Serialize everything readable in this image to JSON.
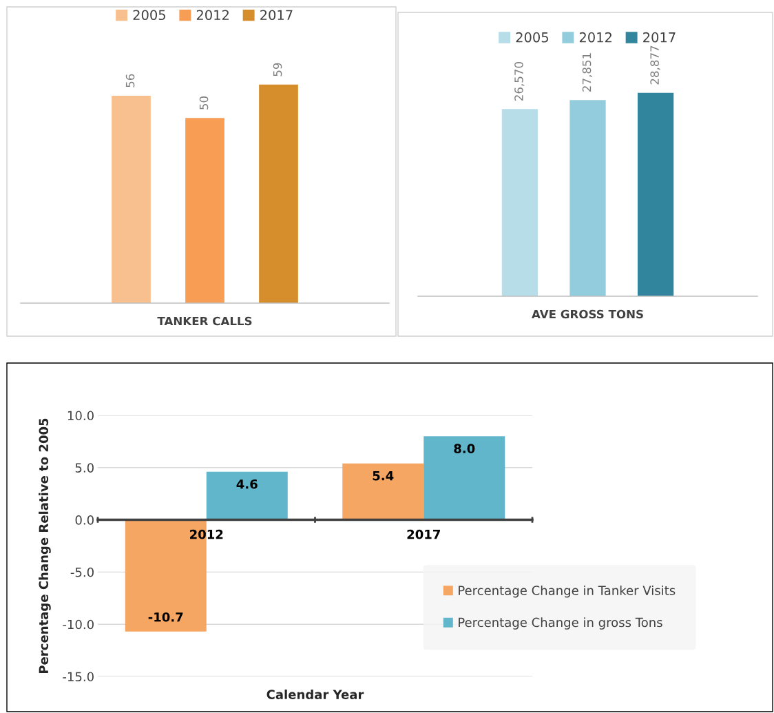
{
  "chart_data": [
    {
      "type": "bar",
      "xlabel": "TANKER CALLS",
      "categories": [
        "2005",
        "2012",
        "2017"
      ],
      "tick_labels": false,
      "data_labels": true,
      "grid": false,
      "series": [
        {
          "colors": [
            "#f9c08f",
            "#f79d54",
            "#d68d2c"
          ],
          "values": [
            56,
            50,
            59
          ]
        }
      ]
    },
    {
      "type": "bar",
      "xlabel": "AVE GROSS TONS",
      "categories": [
        "2005",
        "2012",
        "2017"
      ],
      "tick_labels": false,
      "grid": false,
      "series": [
        {
          "colors": [
            "#b7dde8",
            "#93cddd",
            "#31859c"
          ],
          "values": [
            26570,
            27851,
            28877
          ],
          "value_labels": [
            "26,570",
            "27,851",
            "28,877"
          ]
        }
      ]
    },
    {
      "type": "bar",
      "xlabel": "Calendar Year",
      "ylabel": "Percentage Change Relative to 2005",
      "categories": [
        "2012",
        "2017"
      ],
      "ylim": [
        -15,
        10
      ],
      "yticks": [
        {
          "value": -15,
          "label": "-15.0"
        },
        {
          "value": -10,
          "label": "-10.0"
        },
        {
          "value": -5,
          "label": "-5.0"
        },
        {
          "value": 0,
          "label": "0.0"
        },
        {
          "value": 5,
          "label": "5.0"
        },
        {
          "value": 10,
          "label": "10.0"
        }
      ],
      "grid": "y",
      "legend": "bottom right",
      "series": [
        {
          "name": "Percentage Change in Tanker Visits",
          "color": "#f6a663",
          "values": [
            -10.7,
            5.4
          ],
          "value_labels": [
            "-10.7",
            "5.4"
          ]
        },
        {
          "name": "Percentage Change in gross Tons",
          "color": "#62b6cc",
          "values": [
            4.6,
            8.0
          ],
          "value_labels": [
            "4.6",
            "8.0"
          ]
        }
      ]
    }
  ]
}
